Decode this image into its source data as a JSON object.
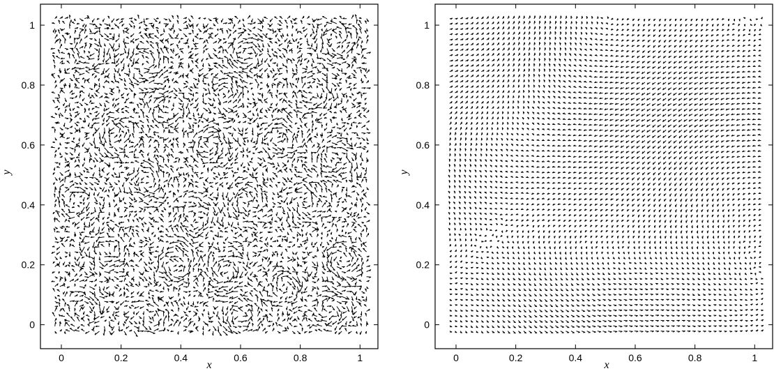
{
  "chart_data": [
    {
      "type": "quiver",
      "title": "",
      "xlabel": "x",
      "ylabel": "y",
      "xlim": [
        -0.07,
        1.06
      ],
      "ylim": [
        -0.08,
        1.07
      ],
      "xticks": [
        0,
        0.2,
        0.4,
        0.6,
        0.8,
        1
      ],
      "xtick_labels": [
        "0",
        "0.2",
        "0.4",
        "0.6",
        "0.8",
        "1"
      ],
      "yticks": [
        0,
        0.2,
        0.4,
        0.6,
        0.8,
        1
      ],
      "ytick_labels": [
        "0",
        "0.2",
        "0.4",
        "0.6",
        "0.8",
        "1"
      ],
      "grid": false,
      "color": "#000000",
      "field": "many small swirling vortices (fine-scale turbulent velocity field) over the unit square",
      "vortices": [
        {
          "x": 0.18,
          "y": 0.63,
          "strength": 1
        },
        {
          "x": 0.1,
          "y": 0.92,
          "strength": -1
        },
        {
          "x": 0.28,
          "y": 0.88,
          "strength": 1
        },
        {
          "x": 0.62,
          "y": 0.9,
          "strength": -1
        },
        {
          "x": 0.92,
          "y": 0.95,
          "strength": 1
        },
        {
          "x": 0.55,
          "y": 0.78,
          "strength": 1
        },
        {
          "x": 0.85,
          "y": 0.78,
          "strength": -1
        },
        {
          "x": 0.35,
          "y": 0.72,
          "strength": -1
        },
        {
          "x": 0.5,
          "y": 0.6,
          "strength": -1
        },
        {
          "x": 0.73,
          "y": 0.62,
          "strength": 1
        },
        {
          "x": 0.92,
          "y": 0.55,
          "strength": -1
        },
        {
          "x": 0.28,
          "y": 0.48,
          "strength": 1
        },
        {
          "x": 0.05,
          "y": 0.42,
          "strength": -1
        },
        {
          "x": 0.62,
          "y": 0.42,
          "strength": 1
        },
        {
          "x": 0.82,
          "y": 0.4,
          "strength": 1
        },
        {
          "x": 0.45,
          "y": 0.35,
          "strength": -1
        },
        {
          "x": 0.15,
          "y": 0.25,
          "strength": 1
        },
        {
          "x": 0.38,
          "y": 0.2,
          "strength": 1
        },
        {
          "x": 0.75,
          "y": 0.13,
          "strength": -1
        },
        {
          "x": 0.55,
          "y": 0.18,
          "strength": -1
        },
        {
          "x": 0.95,
          "y": 0.22,
          "strength": 1
        },
        {
          "x": 0.08,
          "y": 0.05,
          "strength": -1
        },
        {
          "x": 0.3,
          "y": 0.02,
          "strength": 1
        },
        {
          "x": 0.6,
          "y": 0.03,
          "strength": 1
        },
        {
          "x": 0.9,
          "y": 0.05,
          "strength": -1
        }
      ]
    },
    {
      "type": "quiver",
      "title": "",
      "xlabel": "x",
      "ylabel": "y",
      "xlim": [
        -0.07,
        1.06
      ],
      "ylim": [
        -0.08,
        1.07
      ],
      "xticks": [
        0,
        0.2,
        0.4,
        0.6,
        0.8,
        1
      ],
      "xtick_labels": [
        "0",
        "0.2",
        "0.4",
        "0.6",
        "0.8",
        "1"
      ],
      "yticks": [
        0,
        0.2,
        0.4,
        0.6,
        0.8,
        1
      ],
      "ytick_labels": [
        "0",
        "0.2",
        "0.4",
        "0.6",
        "0.8",
        "1"
      ],
      "grid": false,
      "color": "#000000",
      "field": "large-scale velocity field with a few cores",
      "vortices": [
        {
          "x": 0.45,
          "y": 0.1,
          "strength": 1
        },
        {
          "x": 0.05,
          "y": 0.65,
          "strength": -1
        },
        {
          "x": 0.9,
          "y": 0.6,
          "strength": 1
        },
        {
          "x": 0.45,
          "y": 0.95,
          "strength": -1
        }
      ]
    }
  ]
}
